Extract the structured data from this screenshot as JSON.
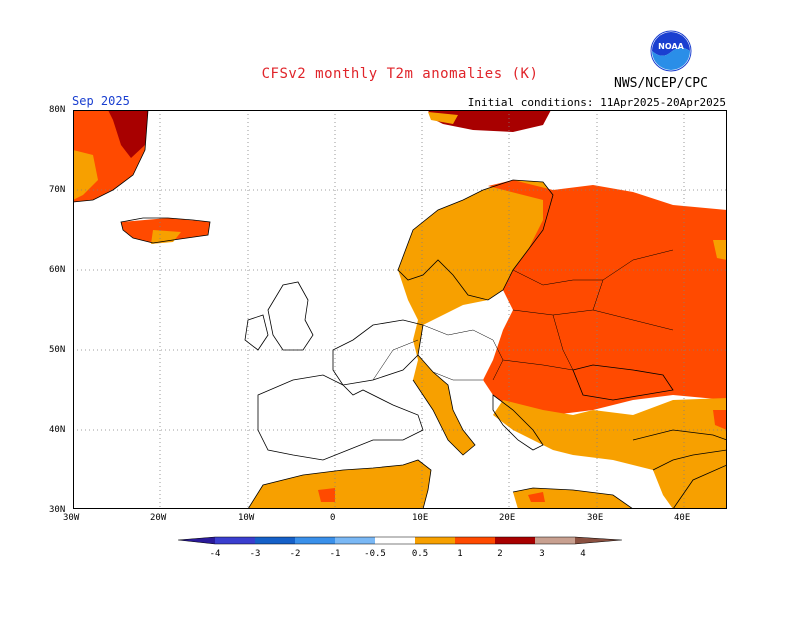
{
  "header": {
    "title": "CFSv2 monthly T2m anomalies (K)",
    "agency": "NWS/NCEP/CPC",
    "period": "Sep 2025",
    "initial_conditions": "Initial conditions: 11Apr2025-20Apr2025",
    "logo_text": "NOAA"
  },
  "map": {
    "lon_labels": [
      "30W",
      "20W",
      "10W",
      "0",
      "10E",
      "20E",
      "30E",
      "40E"
    ],
    "lat_labels": [
      "80N",
      "70N",
      "60N",
      "50N",
      "40N",
      "30N"
    ]
  },
  "legend": {
    "labels": [
      "-4",
      "-3",
      "-2",
      "-1",
      "-0.5",
      "0.5",
      "1",
      "2",
      "3",
      "4"
    ],
    "colors": {
      "lt_-4": "#2a1a9a",
      "-4_-3": "#3a3ecf",
      "-3_-2": "#1560c8",
      "-2_-1": "#3a90ea",
      "-1_-0.5": "#7ab8f5",
      "-0.5_0.5": "#ffffff",
      "0.5_1": "#f7a000",
      "1_2": "#ff4a00",
      "2_3": "#a80000",
      "3_4": "#c8a090",
      "gt_4": "#8a5040"
    }
  }
}
